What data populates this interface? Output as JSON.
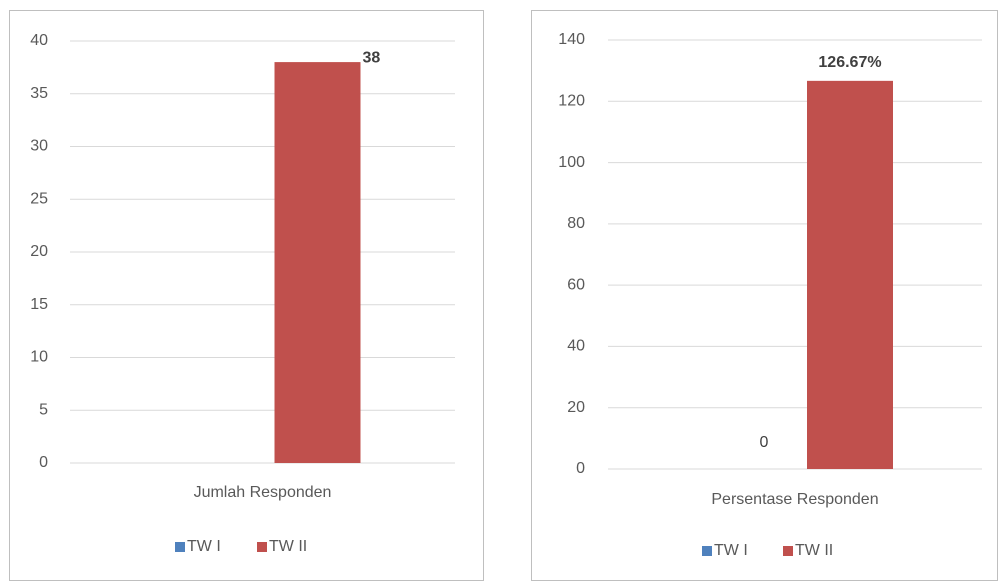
{
  "chart_data": [
    {
      "type": "bar",
      "categories": [
        "Jumlah Responden"
      ],
      "series": [
        {
          "name": "TW I",
          "color": "#4f81bd",
          "values": [
            null
          ]
        },
        {
          "name": "TW II",
          "color": "#c0504d",
          "values": [
            38
          ]
        }
      ],
      "ylim": [
        0,
        40
      ],
      "yticks": [
        0,
        5,
        10,
        15,
        20,
        25,
        30,
        35,
        40
      ],
      "grid": true,
      "legend": "bottom"
    },
    {
      "type": "bar",
      "categories": [
        "Persentase Responden"
      ],
      "series": [
        {
          "name": "TW I",
          "color": "#4f81bd",
          "values": [
            0
          ]
        },
        {
          "name": "TW II",
          "color": "#c0504d",
          "values": [
            126.67
          ],
          "value_labels": [
            "126.67%"
          ]
        }
      ],
      "ylim": [
        0,
        140
      ],
      "yticks": [
        0,
        20,
        40,
        60,
        80,
        100,
        120,
        140
      ],
      "grid": true,
      "legend": "bottom"
    }
  ]
}
